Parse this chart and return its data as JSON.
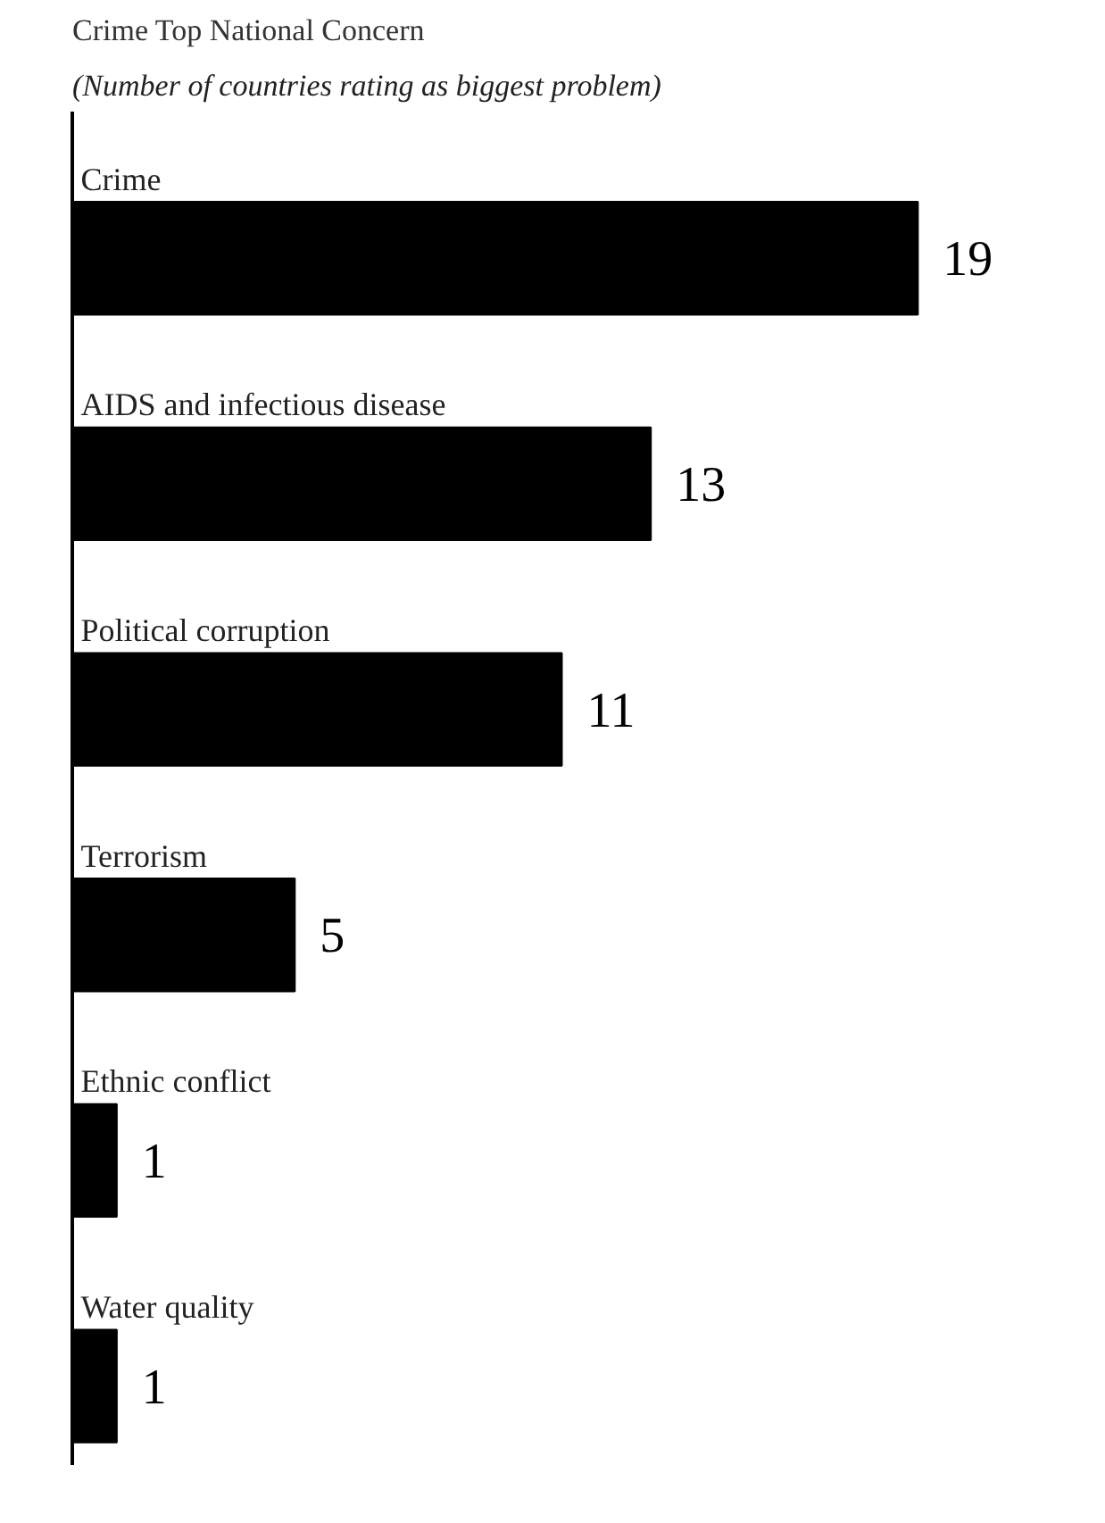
{
  "chart_data": {
    "type": "bar",
    "orientation": "horizontal",
    "title": "Crime Top National Concern",
    "subtitle": "(Number of countries rating as biggest problem)",
    "categories": [
      "Crime",
      "AIDS and infectious disease",
      "Political corruption",
      "Terrorism",
      "Ethnic conflict",
      "Water quality"
    ],
    "values": [
      19,
      13,
      11,
      5,
      1,
      1
    ],
    "color": "#000000",
    "data_labels": true,
    "grid": false
  }
}
